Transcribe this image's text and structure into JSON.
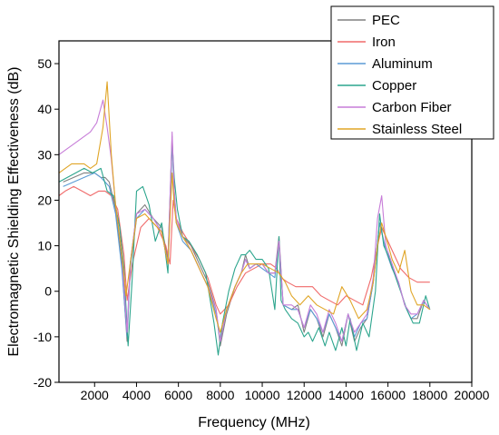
{
  "chart_data": {
    "type": "line",
    "title": "",
    "xlabel": "Frequency (MHz)",
    "ylabel": "Electromagnetic Shielding Effectiveness (dB)",
    "xlim": [
      300,
      20000
    ],
    "ylim": [
      -20,
      55
    ],
    "x_ticks": [
      2000,
      4000,
      6000,
      8000,
      10000,
      12000,
      14000,
      16000,
      18000,
      20000
    ],
    "y_ticks": [
      -20,
      -10,
      0,
      10,
      20,
      30,
      40,
      50
    ],
    "grid": false,
    "legend_position": "top-right",
    "series": [
      {
        "name": "PEC",
        "color": "#808080",
        "x": [
          500,
          1000,
          1500,
          2000,
          2300,
          2500,
          2700,
          3000,
          3300,
          3550,
          3700,
          4000,
          4400,
          4800,
          5200,
          5500,
          5700,
          5800,
          5900,
          6200,
          6600,
          7000,
          7400,
          7800,
          8000,
          8300,
          8700,
          9000,
          9200,
          9400,
          9700,
          10000,
          10300,
          10600,
          10800,
          11000,
          11400,
          11700,
          12000,
          12300,
          12600,
          12900,
          13200,
          13500,
          13800,
          14100,
          14400,
          14700,
          15000,
          15300,
          15600,
          15900,
          16200,
          16500,
          16800,
          17100,
          17400,
          17700,
          18000
        ],
        "y": [
          24,
          25,
          26,
          26,
          25,
          25,
          24,
          18,
          6,
          -11,
          6,
          17,
          19,
          16,
          14,
          7,
          34,
          22,
          16,
          12,
          10,
          6,
          2,
          -4,
          -12,
          -5,
          1,
          4,
          8,
          5,
          6,
          6,
          4,
          4,
          12,
          -3,
          -4,
          -3,
          -9,
          -4,
          -6,
          -10,
          -5,
          -8,
          -12,
          -5,
          -11,
          -8,
          -6,
          2,
          15,
          9,
          5,
          2,
          -3,
          -6,
          -6,
          -2,
          -4
        ]
      },
      {
        "name": "Iron",
        "color": "#f06a6a",
        "x": [
          300,
          600,
          1000,
          1400,
          1800,
          2200,
          2500,
          2800,
          3100,
          3400,
          3550,
          3800,
          4200,
          4600,
          5000,
          5400,
          5600,
          5750,
          5900,
          6200,
          6600,
          7000,
          7400,
          7800,
          8000,
          8400,
          8800,
          9200,
          9600,
          10000,
          10400,
          10700,
          10900,
          11200,
          11600,
          12000,
          12400,
          12800,
          13200,
          13600,
          14000,
          14400,
          14800,
          15200,
          15500,
          15700,
          15900,
          16200,
          16600,
          17000,
          17400,
          17800,
          18000
        ],
        "y": [
          21,
          22,
          23,
          22,
          21,
          22,
          22,
          21,
          18,
          8,
          -2,
          6,
          14,
          16,
          14,
          10,
          6,
          20,
          16,
          13,
          10,
          7,
          3,
          -3,
          -5,
          -3,
          1,
          4,
          5,
          6,
          6,
          5,
          3,
          2,
          1,
          1,
          1,
          -1,
          -2,
          -3,
          -1,
          -2,
          -3,
          3,
          10,
          14,
          12,
          9,
          5,
          3,
          2,
          2,
          2
        ]
      },
      {
        "name": "Aluminum",
        "color": "#5b9bd5",
        "x": [
          500,
          1000,
          1500,
          2000,
          2300,
          2500,
          2700,
          3000,
          3300,
          3550,
          3700,
          4000,
          4400,
          4800,
          5200,
          5500,
          5700,
          5800,
          5900,
          6200,
          6600,
          7000,
          7400,
          7800,
          8000,
          8300,
          8700,
          9000,
          9200,
          9400,
          9700,
          10000,
          10300,
          10600,
          10800,
          11000,
          11400,
          11700,
          12000,
          12300,
          12600,
          12900,
          13200,
          13500,
          13800,
          14100,
          14400,
          14700,
          15000,
          15300,
          15600,
          15900,
          16200,
          16500,
          16800,
          17100,
          17400,
          17700,
          18000
        ],
        "y": [
          23,
          24,
          25,
          26,
          25,
          24,
          23,
          17,
          5,
          -10,
          5,
          16,
          18,
          16,
          13,
          6,
          33,
          21,
          15,
          11,
          9,
          5,
          1,
          -5,
          -11,
          -4,
          1,
          4,
          7,
          5,
          6,
          5,
          4,
          3,
          11,
          -3,
          -4,
          -4,
          -8,
          -4,
          -6,
          -9,
          -5,
          -8,
          -11,
          -5,
          -10,
          -7,
          -6,
          2,
          15,
          9,
          5,
          2,
          -3,
          -6,
          -5,
          -2,
          -4
        ]
      },
      {
        "name": "Copper",
        "color": "#2ca58d",
        "x": [
          300,
          700,
          1100,
          1500,
          1900,
          2300,
          2600,
          2900,
          3200,
          3400,
          3600,
          3800,
          4000,
          4300,
          4600,
          4900,
          5200,
          5500,
          5700,
          5800,
          5950,
          6200,
          6500,
          6900,
          7300,
          7700,
          7900,
          8100,
          8400,
          8700,
          9000,
          9200,
          9400,
          9700,
          10000,
          10300,
          10600,
          10800,
          10900,
          11100,
          11400,
          11700,
          12000,
          12200,
          12400,
          12700,
          13000,
          13200,
          13500,
          13800,
          14000,
          14200,
          14500,
          14800,
          15100,
          15400,
          15600,
          15800,
          16000,
          16300,
          16600,
          16900,
          17200,
          17500,
          17800,
          18000
        ],
        "y": [
          24,
          25,
          26,
          27,
          26,
          27,
          22,
          21,
          14,
          5,
          -12,
          3,
          22,
          23,
          19,
          11,
          15,
          4,
          33,
          25,
          18,
          12,
          11,
          8,
          4,
          -7,
          -14,
          -7,
          0,
          5,
          8,
          8,
          9,
          7,
          7,
          5,
          -4,
          12,
          -2,
          -4,
          -6,
          -7,
          -10,
          -9,
          -11,
          -8,
          -12,
          -9,
          -13,
          -8,
          -12,
          -6,
          -13,
          -7,
          -10,
          0,
          17,
          10,
          8,
          4,
          0,
          -4,
          -7,
          -7,
          -1,
          -4
        ]
      },
      {
        "name": "Carbon Fiber",
        "color": "#c77dd8",
        "x": [
          300,
          600,
          900,
          1200,
          1500,
          1800,
          2100,
          2400,
          2600,
          2800,
          3000,
          3300,
          3550,
          3700,
          4000,
          4400,
          4800,
          5200,
          5500,
          5700,
          5800,
          5900,
          6200,
          6600,
          7000,
          7400,
          7800,
          8000,
          8300,
          8700,
          9000,
          9200,
          9400,
          9700,
          10000,
          10300,
          10600,
          10800,
          11000,
          11400,
          11700,
          12000,
          12300,
          12600,
          12900,
          13200,
          13500,
          13800,
          14100,
          14400,
          14700,
          15000,
          15300,
          15500,
          15700,
          15900,
          16200,
          16500,
          16800,
          17100,
          17400,
          17700,
          18000
        ],
        "y": [
          30,
          31,
          32,
          33,
          34,
          35,
          37,
          42,
          36,
          29,
          19,
          8,
          -9,
          6,
          17,
          18,
          16,
          13,
          6,
          35,
          22,
          16,
          12,
          9,
          5,
          1,
          -4,
          -11,
          -4,
          1,
          4,
          7,
          5,
          6,
          6,
          4,
          4,
          11,
          -3,
          -3,
          -4,
          -8,
          -3,
          -5,
          -9,
          -4,
          -7,
          -11,
          -5,
          -9,
          -7,
          -5,
          3,
          16,
          21,
          10,
          6,
          2,
          -3,
          -5,
          -5,
          -2,
          -4
        ]
      },
      {
        "name": "Stainless Steel",
        "color": "#e0a526",
        "x": [
          300,
          600,
          900,
          1200,
          1500,
          1800,
          2100,
          2400,
          2600,
          2800,
          3000,
          3300,
          3500,
          3700,
          4000,
          4400,
          4800,
          5200,
          5500,
          5700,
          5800,
          5900,
          6200,
          6600,
          7000,
          7400,
          7800,
          8000,
          8300,
          8700,
          9000,
          9300,
          9600,
          10000,
          10400,
          10800,
          11100,
          11400,
          11800,
          12200,
          12600,
          13000,
          13400,
          13800,
          14200,
          14600,
          15000,
          15300,
          15500,
          15700,
          15900,
          16200,
          16500,
          16800,
          17100,
          17400,
          17700,
          18000
        ],
        "y": [
          26,
          27,
          28,
          28,
          28,
          27,
          28,
          36,
          46,
          30,
          19,
          8,
          -1,
          6,
          16,
          17,
          15,
          13,
          6,
          26,
          19,
          15,
          12,
          9,
          5,
          1,
          -6,
          -9,
          -4,
          1,
          4,
          6,
          6,
          6,
          5,
          4,
          2,
          -1,
          -3,
          -1,
          -3,
          -4,
          -5,
          1,
          -2,
          -6,
          -4,
          2,
          10,
          15,
          12,
          7,
          4,
          9,
          0,
          -3,
          -3,
          -4
        ]
      }
    ]
  }
}
